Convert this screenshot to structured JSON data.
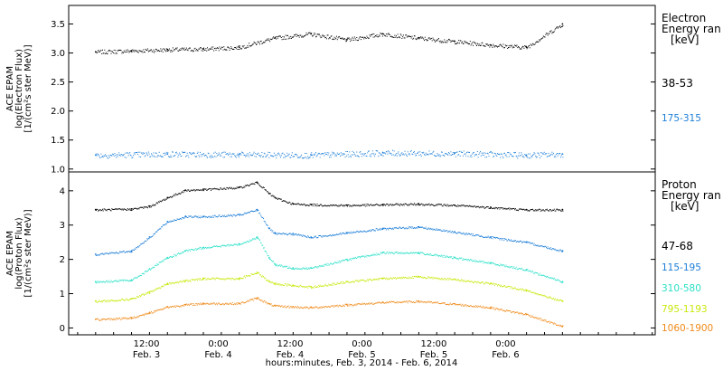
{
  "chart_data": [
    {
      "type": "scatter",
      "title": "",
      "ylabel_lines": [
        "ACE EPAM",
        "log(Electron Flux)",
        "[1/(cm²s ster MeV)]"
      ],
      "ylim": [
        0.95,
        3.82
      ],
      "yticks": [
        "1.0",
        "1.5",
        "2.0",
        "2.5",
        "3.0",
        "3.5"
      ],
      "legend_title": [
        "Electron",
        "Energy ran",
        "[keV]"
      ],
      "series": [
        {
          "name": "38-53",
          "color": "#000000",
          "x": [
            0,
            6,
            12,
            18,
            24,
            30,
            36,
            42,
            48,
            54,
            60,
            66,
            72,
            78
          ],
          "y": [
            3.02,
            3.04,
            3.06,
            3.07,
            3.1,
            3.26,
            3.33,
            3.23,
            3.33,
            3.26,
            3.2,
            3.14,
            3.1,
            3.5
          ]
        },
        {
          "name": "175-315",
          "color": "#1e7fd8",
          "x": [
            0,
            12,
            24,
            36,
            48,
            60,
            72,
            78
          ],
          "y": [
            1.24,
            1.26,
            1.25,
            1.24,
            1.28,
            1.27,
            1.24,
            1.26
          ]
        }
      ]
    },
    {
      "type": "scatter",
      "title": "",
      "ylabel_lines": [
        "ACE EPAM",
        "log(Proton Flux)",
        "[1/(cm²s ster MeV)]"
      ],
      "ylim": [
        -0.2,
        4.55
      ],
      "yticks": [
        "0",
        "1",
        "2",
        "3",
        "4"
      ],
      "legend_title": [
        "Proton",
        "Energy ran",
        "[keV]"
      ],
      "series": [
        {
          "name": "47-68",
          "color": "#000000",
          "x": [
            0,
            6,
            9,
            12,
            15,
            18,
            24,
            27,
            29,
            30,
            33,
            36,
            42,
            48,
            54,
            60,
            66,
            72,
            78
          ],
          "y": [
            3.45,
            3.47,
            3.55,
            3.8,
            4.02,
            4.04,
            4.1,
            4.25,
            3.92,
            3.8,
            3.62,
            3.6,
            3.58,
            3.6,
            3.62,
            3.58,
            3.52,
            3.45,
            3.45
          ]
        },
        {
          "name": "115-195",
          "color": "#1e7fd8",
          "x": [
            0,
            6,
            9,
            12,
            15,
            18,
            24,
            27,
            29,
            30,
            33,
            36,
            42,
            48,
            54,
            60,
            66,
            72,
            78
          ],
          "y": [
            2.15,
            2.25,
            2.65,
            3.1,
            3.25,
            3.25,
            3.3,
            3.45,
            2.9,
            2.75,
            2.75,
            2.65,
            2.78,
            2.9,
            2.95,
            2.8,
            2.65,
            2.5,
            2.25
          ]
        },
        {
          "name": "310-580",
          "color": "#2be0c8",
          "x": [
            0,
            6,
            9,
            12,
            15,
            18,
            24,
            27,
            29,
            30,
            33,
            36,
            42,
            48,
            54,
            60,
            66,
            72,
            78
          ],
          "y": [
            1.35,
            1.4,
            1.72,
            2.05,
            2.25,
            2.35,
            2.45,
            2.65,
            2.05,
            1.85,
            1.75,
            1.75,
            2.0,
            2.2,
            2.2,
            2.05,
            1.9,
            1.7,
            1.35
          ]
        },
        {
          "name": "795-1193",
          "color": "#c8e80a",
          "x": [
            0,
            6,
            9,
            12,
            15,
            18,
            24,
            27,
            29,
            30,
            33,
            36,
            42,
            48,
            54,
            60,
            66,
            72,
            78
          ],
          "y": [
            0.78,
            0.85,
            1.05,
            1.3,
            1.38,
            1.45,
            1.45,
            1.62,
            1.35,
            1.3,
            1.25,
            1.2,
            1.35,
            1.45,
            1.5,
            1.42,
            1.3,
            1.1,
            0.78
          ]
        },
        {
          "name": "1060-1900",
          "color": "#f08a1a",
          "x": [
            0,
            6,
            9,
            12,
            15,
            18,
            24,
            27,
            29,
            30,
            33,
            36,
            42,
            48,
            54,
            60,
            66,
            72,
            78
          ],
          "y": [
            0.25,
            0.3,
            0.45,
            0.62,
            0.68,
            0.72,
            0.72,
            0.88,
            0.7,
            0.65,
            0.62,
            0.6,
            0.68,
            0.75,
            0.78,
            0.7,
            0.6,
            0.4,
            0.05
          ]
        }
      ]
    }
  ],
  "x_axis": {
    "xlim": [
      -4.5,
      93.5
    ],
    "label": "hours:minutes, Feb.  3, 2014 - Feb.  6, 2014",
    "ticks": [
      {
        "x": 8.5,
        "time": "12:00",
        "day": "Feb. 3"
      },
      {
        "x": 20.5,
        "time": "0:00",
        "day": "Feb. 4"
      },
      {
        "x": 32.5,
        "time": "12:00",
        "day": "Feb. 4"
      },
      {
        "x": 44.5,
        "time": "0:00",
        "day": "Feb. 5"
      },
      {
        "x": 56.5,
        "time": "12:00",
        "day": "Feb. 5"
      },
      {
        "x": 68.5,
        "time": "0:00",
        "day": "Feb. 6"
      }
    ]
  }
}
